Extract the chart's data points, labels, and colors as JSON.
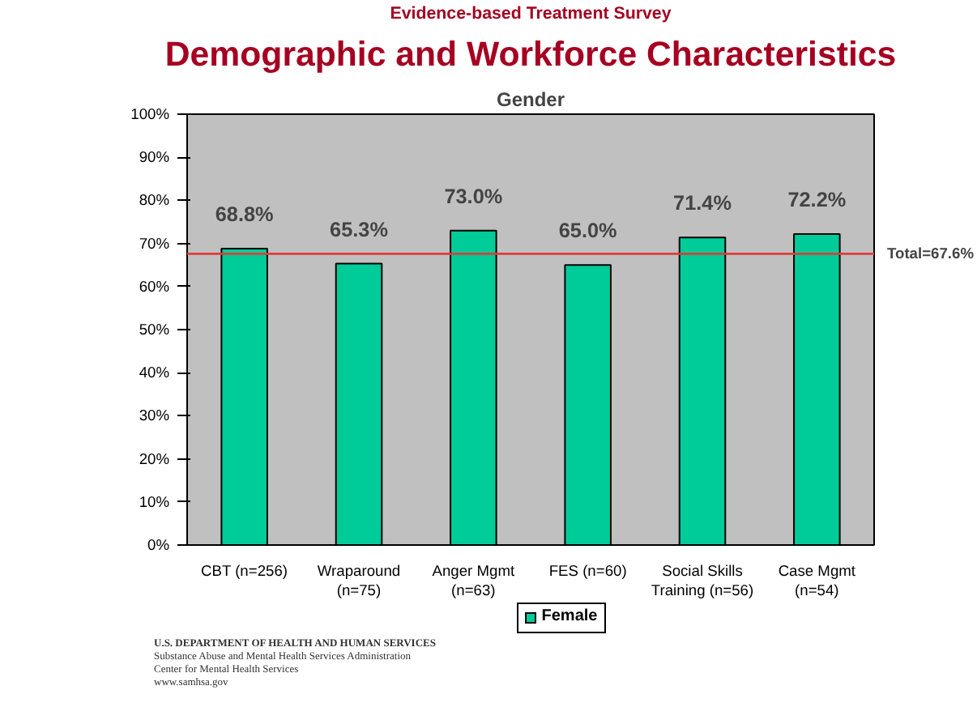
{
  "chart_data": {
    "type": "bar",
    "title": "Demographic and Workforce Characteristics",
    "subtitle": "Evidence-based Treatment Survey",
    "annotations": [
      "Gender",
      "U.S. DEPARTMENT OF HEALTH AND HUMAN SERVICES",
      "Substance Abuse and Mental Health Services Administration",
      "Center for Mental Health Services",
      "www.samhsa.gov"
    ],
    "categories": [
      "CBT (n=256)",
      "Wraparound\n(n=75)",
      "Anger Mgmt\n(n=63)",
      "FES (n=60)",
      "Social Skills\nTraining (n=56)",
      "Case Mgmt\n(n=54)"
    ],
    "series": [
      {
        "name": "Female",
        "color": "#00cc99",
        "values": [
          68.8,
          65.3,
          73.0,
          65.0,
          71.4,
          72.2
        ]
      }
    ],
    "value_labels": [
      "68.8%",
      "65.3%",
      "73.0%",
      "65.0%",
      "71.4%",
      "72.2%"
    ],
    "ylim": [
      0,
      100
    ],
    "yticks": [
      {
        "value": 0,
        "label": "0%"
      },
      {
        "value": 10,
        "label": "10%"
      },
      {
        "value": 20,
        "label": "20%"
      },
      {
        "value": 30,
        "label": "30%"
      },
      {
        "value": 40,
        "label": "40%"
      },
      {
        "value": 50,
        "label": "50%"
      },
      {
        "value": 60,
        "label": "60%"
      },
      {
        "value": 70,
        "label": "70%"
      },
      {
        "value": 80,
        "label": "80%"
      },
      {
        "value": 90,
        "label": "90%"
      },
      {
        "value": 100,
        "label": "100%"
      }
    ],
    "ref_lines": [
      {
        "axis": "y",
        "value": 67.6,
        "label": "Total=67.6%",
        "color": "#e03c3c"
      }
    ],
    "legend": "bottom"
  }
}
